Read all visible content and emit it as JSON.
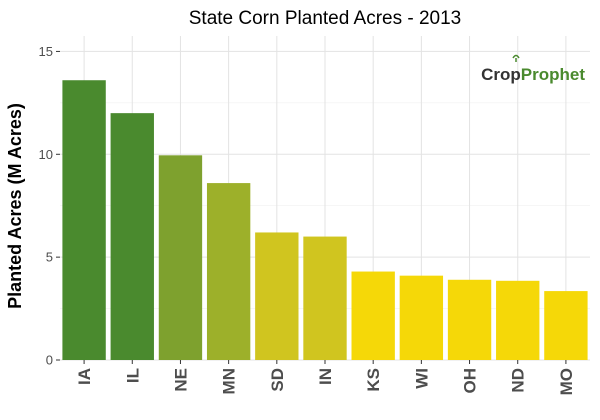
{
  "chart_data": {
    "type": "bar",
    "title": "State Corn Planted Acres - 2013",
    "xlabel": "",
    "ylabel": "Planted Acres (M Acres)",
    "ylim": [
      0,
      15.75
    ],
    "yticks": [
      0,
      5,
      10,
      15
    ],
    "grid": true,
    "categories": [
      "IA",
      "IL",
      "NE",
      "MN",
      "SD",
      "IN",
      "KS",
      "WI",
      "OH",
      "ND",
      "MO"
    ],
    "values": [
      13.6,
      12.0,
      9.95,
      8.6,
      6.2,
      6.0,
      4.3,
      4.1,
      3.9,
      3.85,
      3.35
    ],
    "colors": [
      "#4a8a2e",
      "#4a8a2e",
      "#7ea12e",
      "#9db02a",
      "#d0c51f",
      "#d0c51f",
      "#f5d808",
      "#f5d808",
      "#f5d808",
      "#f5d808",
      "#f5d808"
    ]
  },
  "logo": {
    "part1": "Crop",
    "part2": "Prophet"
  }
}
